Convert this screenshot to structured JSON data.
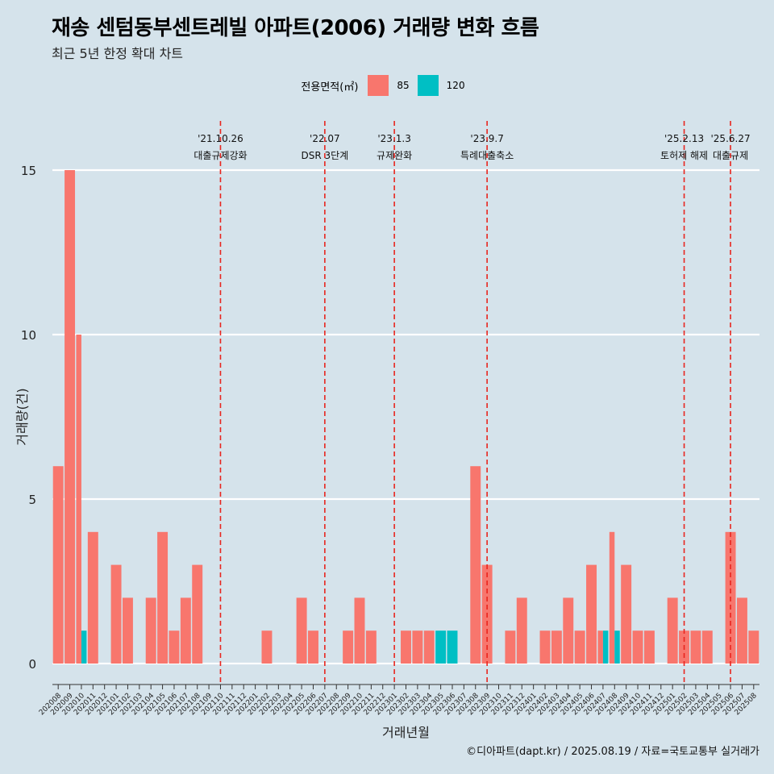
{
  "title": "재송 센텀동부센트레빌 아파트(2006) 거래량 변화 흐름",
  "subtitle": "최근 5년 한정 확대 차트",
  "caption": "©디아파트(dapt.kr) / 2025.08.19 / 자료=국토교통부 실거래가",
  "colors": {
    "85": "#f8766d",
    "120": "#00bfc4",
    "background": "#d5e3eb",
    "event_line": "#e8251e"
  },
  "chart_data": {
    "type": "bar",
    "xlabel": "거래년월",
    "ylabel": "거래량(건)",
    "ylim": [
      0,
      15
    ],
    "yticks": [
      0,
      5,
      10,
      15
    ],
    "grid": true,
    "legend": {
      "title": "전용면적(㎡)",
      "position": "top",
      "entries": [
        "85",
        "120"
      ]
    },
    "categories": [
      "202008",
      "202009",
      "202010",
      "202011",
      "202012",
      "202101",
      "202102",
      "202103",
      "202104",
      "202105",
      "202106",
      "202107",
      "202108",
      "202109",
      "202110",
      "202111",
      "202112",
      "202201",
      "202202",
      "202203",
      "202204",
      "202205",
      "202206",
      "202207",
      "202208",
      "202209",
      "202210",
      "202211",
      "202212",
      "202301",
      "202302",
      "202303",
      "202304",
      "202305",
      "202306",
      "202307",
      "202308",
      "202309",
      "202310",
      "202311",
      "202312",
      "202401",
      "202402",
      "202403",
      "202404",
      "202405",
      "202406",
      "202407",
      "202408",
      "202409",
      "202410",
      "202411",
      "202412",
      "202501",
      "202502",
      "202503",
      "202504",
      "202505",
      "202506",
      "202507",
      "202508"
    ],
    "series": [
      {
        "name": "85",
        "values": [
          6,
          15,
          10,
          4,
          0,
          3,
          2,
          0,
          2,
          4,
          1,
          2,
          3,
          0,
          0,
          0,
          0,
          0,
          1,
          0,
          0,
          2,
          1,
          0,
          0,
          1,
          2,
          1,
          0,
          0,
          1,
          1,
          1,
          0,
          0,
          0,
          6,
          3,
          0,
          1,
          2,
          0,
          1,
          1,
          2,
          1,
          3,
          1,
          4,
          3,
          1,
          1,
          0,
          2,
          1,
          1,
          1,
          0,
          4,
          2,
          1
        ]
      },
      {
        "name": "120",
        "values": [
          0,
          0,
          1,
          0,
          0,
          0,
          0,
          0,
          0,
          0,
          0,
          0,
          0,
          0,
          0,
          0,
          0,
          0,
          0,
          0,
          0,
          0,
          0,
          0,
          0,
          0,
          0,
          0,
          0,
          0,
          0,
          0,
          0,
          1,
          1,
          0,
          0,
          0,
          0,
          0,
          0,
          0,
          0,
          0,
          0,
          0,
          0,
          1,
          1,
          0,
          0,
          0,
          0,
          0,
          0,
          0,
          0,
          0,
          0,
          0,
          0
        ]
      }
    ],
    "annotations": [
      {
        "x": "202110",
        "date": "'21.10.26",
        "label": "대출규제강화"
      },
      {
        "x": "202207",
        "date": "'22.07",
        "label": "DSR 3단계"
      },
      {
        "x": "202301",
        "date": "'23.1.3",
        "label": "규제완화"
      },
      {
        "x": "202309",
        "date": "'23.9.7",
        "label": "특례대출축소"
      },
      {
        "x": "202502",
        "date": "'25.2.13",
        "label": "토허제 해제"
      },
      {
        "x": "202506",
        "date": "'25.6.27",
        "label": "대출규제"
      }
    ]
  }
}
